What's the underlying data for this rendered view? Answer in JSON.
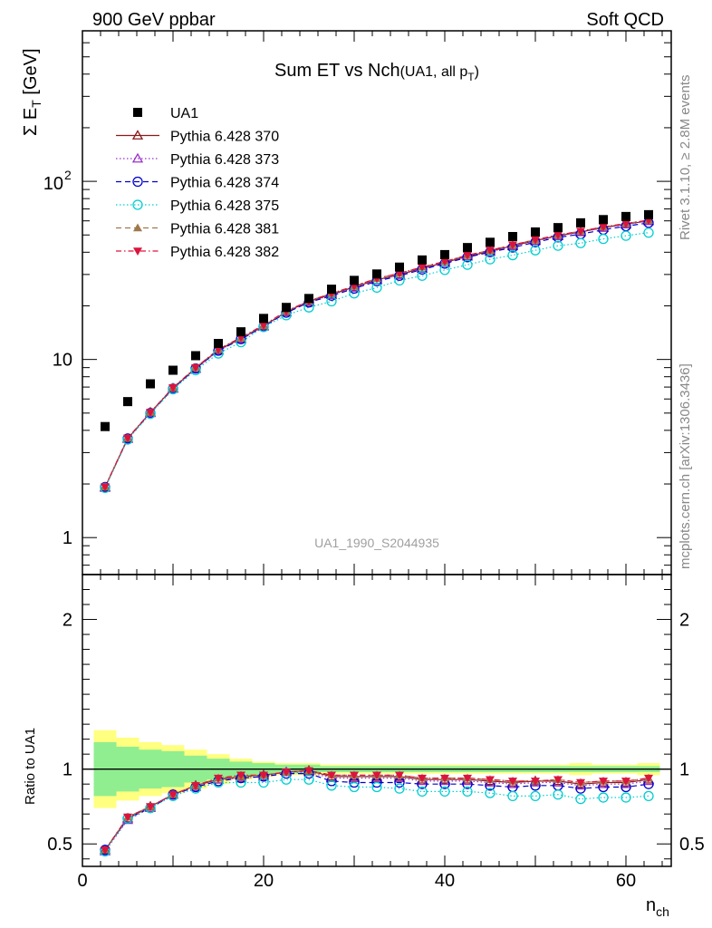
{
  "header": {
    "left": "900 GeV ppbar",
    "right": "Soft QCD",
    "title_main": "Sum ET vs Nch",
    "title_sub_pre": "(UA1, all p",
    "title_sub_sub": "T",
    "title_sub_post": ")"
  },
  "side": {
    "rivet": "Rivet 3.1.10, ≥ 2.8M events",
    "mcplots": "mcplots.cern.ch [arXiv:1306.3436]"
  },
  "watermark": "UA1_1990_S2044935",
  "chart_data": [
    {
      "type": "scatter",
      "panel": "main",
      "ylabel_main": "Σ E",
      "ylabel_sub": "T",
      "ylabel_unit": " [GeV]",
      "yscale": "log",
      "ylim": [
        0.62,
        700
      ],
      "xlim": [
        0,
        65
      ],
      "ytick_labels": {
        "1": "1",
        "10": "10",
        "100": "10",
        "100_exp": "2"
      },
      "legend": {
        "location": "top-left"
      },
      "x": [
        2.5,
        5,
        7.5,
        10,
        12.5,
        15,
        17.5,
        20,
        22.5,
        25,
        27.5,
        30,
        32.5,
        35,
        37.5,
        40,
        42.5,
        45,
        47.5,
        50,
        52.5,
        55,
        57.5,
        60,
        62.5
      ],
      "series": [
        {
          "name": "UA1",
          "color": "#000000",
          "marker": "square",
          "line": "none",
          "values": [
            4.2,
            5.8,
            7.3,
            8.7,
            10.5,
            12.3,
            14.3,
            17.0,
            19.6,
            22.0,
            24.8,
            27.8,
            30.2,
            33.0,
            36.2,
            38.8,
            42.5,
            45.5,
            49.0,
            52.0,
            55.0,
            58.5,
            61.0,
            63.5,
            65.0
          ]
        },
        {
          "name": "Pythia 6.428 370",
          "color": "#8b1a1a",
          "marker": "triangle-open",
          "line": "solid",
          "values": [
            1.92,
            3.6,
            5.05,
            6.9,
            8.9,
            11.3,
            13.1,
            15.4,
            18.5,
            21.2,
            23.2,
            25.5,
            28.0,
            30.0,
            32.5,
            35.0,
            38.0,
            40.5,
            43.5,
            46.5,
            49.5,
            52.0,
            55.0,
            57.5,
            60.0
          ]
        },
        {
          "name": "Pythia 6.428 373",
          "color": "#9932cc",
          "marker": "triangle-open",
          "line": "dotted",
          "values": [
            1.9,
            3.58,
            5.0,
            6.85,
            8.85,
            11.2,
            13.0,
            15.3,
            18.4,
            21.0,
            23.0,
            25.3,
            27.8,
            29.8,
            32.3,
            34.8,
            37.8,
            40.2,
            43.2,
            46.2,
            49.2,
            51.8,
            54.8,
            57.2,
            59.8
          ]
        },
        {
          "name": "Pythia 6.428 374",
          "color": "#0000cd",
          "marker": "circle-open",
          "line": "dashed",
          "values": [
            1.92,
            3.6,
            5.0,
            6.85,
            8.9,
            11.2,
            13.0,
            15.3,
            18.3,
            20.9,
            22.8,
            25.0,
            27.5,
            29.5,
            32.0,
            34.5,
            37.5,
            40.0,
            42.5,
            45.5,
            48.5,
            50.5,
            53.5,
            56.0,
            58.5
          ]
        },
        {
          "name": "Pythia 6.428 375",
          "color": "#00ced1",
          "marker": "circle-open",
          "line": "dotted",
          "values": [
            1.9,
            3.55,
            4.95,
            6.8,
            8.7,
            10.8,
            12.5,
            15.2,
            17.7,
            19.6,
            21.2,
            23.5,
            25.3,
            27.8,
            29.5,
            31.8,
            34.0,
            36.5,
            38.5,
            41.0,
            43.5,
            45.0,
            47.5,
            49.5,
            51.5
          ]
        },
        {
          "name": "Pythia 6.428 381",
          "color": "#a0784b",
          "marker": "triangle",
          "line": "dashed",
          "values": [
            1.93,
            3.62,
            5.05,
            6.95,
            9.0,
            11.4,
            13.2,
            15.5,
            18.6,
            21.3,
            23.5,
            25.8,
            28.5,
            30.5,
            33.0,
            35.5,
            38.5,
            41.0,
            44.0,
            47.0,
            50.0,
            52.5,
            55.5,
            58.0,
            60.5
          ]
        },
        {
          "name": "Pythia 6.428 382",
          "color": "#dc143c",
          "marker": "triangle-down",
          "line": "dashdot",
          "values": [
            1.93,
            3.62,
            5.05,
            6.95,
            9.0,
            11.4,
            13.3,
            15.6,
            18.7,
            21.3,
            23.5,
            25.8,
            28.5,
            30.5,
            33.0,
            35.5,
            38.5,
            41.0,
            44.0,
            47.0,
            50.0,
            52.5,
            55.5,
            58.0,
            60.5
          ]
        }
      ]
    },
    {
      "type": "scatter",
      "panel": "ratio",
      "ylabel": "Ratio to UA1",
      "xlabel_main": "n",
      "xlabel_sub": "ch",
      "ylim": [
        0.35,
        2.3
      ],
      "xlim": [
        0,
        65
      ],
      "xticks": [
        0,
        20,
        40,
        60
      ],
      "yticks": [
        0.5,
        1,
        2
      ],
      "ytick_labels": [
        "0.5",
        "1",
        "2"
      ],
      "band_inner": [
        0.82,
        0.85,
        0.87,
        0.88,
        0.91,
        0.93,
        0.95,
        0.96,
        0.97,
        0.97,
        0.98,
        0.98,
        0.98,
        0.98,
        0.98,
        0.98,
        0.98,
        0.98,
        0.98,
        0.98,
        0.98,
        0.98,
        0.98,
        0.98,
        0.98
      ],
      "band_inner_hi": [
        1.18,
        1.15,
        1.13,
        1.12,
        1.09,
        1.07,
        1.05,
        1.04,
        1.03,
        1.03,
        1.02,
        1.02,
        1.02,
        1.02,
        1.02,
        1.02,
        1.02,
        1.02,
        1.02,
        1.02,
        1.02,
        1.02,
        1.02,
        1.02,
        1.02
      ],
      "band_outer": [
        0.74,
        0.79,
        0.82,
        0.84,
        0.87,
        0.9,
        0.93,
        0.95,
        0.96,
        0.96,
        0.97,
        0.97,
        0.97,
        0.97,
        0.97,
        0.97,
        0.97,
        0.97,
        0.97,
        0.97,
        0.97,
        0.96,
        0.97,
        0.97,
        0.96
      ],
      "band_outer_hi": [
        1.26,
        1.21,
        1.18,
        1.16,
        1.13,
        1.1,
        1.07,
        1.05,
        1.04,
        1.04,
        1.03,
        1.03,
        1.03,
        1.03,
        1.03,
        1.03,
        1.03,
        1.03,
        1.03,
        1.03,
        1.03,
        1.04,
        1.03,
        1.03,
        1.04
      ],
      "series": [
        {
          "name": "Pythia 6.428 370",
          "values": [
            0.46,
            0.67,
            0.75,
            0.83,
            0.89,
            0.93,
            0.95,
            0.96,
            0.98,
            0.99,
            0.95,
            0.95,
            0.95,
            0.95,
            0.93,
            0.93,
            0.93,
            0.92,
            0.91,
            0.92,
            0.92,
            0.9,
            0.91,
            0.91,
            0.93
          ]
        },
        {
          "name": "Pythia 6.428 373",
          "values": [
            0.45,
            0.66,
            0.74,
            0.83,
            0.88,
            0.93,
            0.94,
            0.95,
            0.98,
            0.98,
            0.94,
            0.94,
            0.94,
            0.94,
            0.92,
            0.92,
            0.92,
            0.91,
            0.9,
            0.91,
            0.91,
            0.89,
            0.9,
            0.9,
            0.92
          ]
        },
        {
          "name": "Pythia 6.428 374",
          "values": [
            0.46,
            0.67,
            0.74,
            0.83,
            0.88,
            0.92,
            0.94,
            0.95,
            0.97,
            0.97,
            0.92,
            0.91,
            0.91,
            0.91,
            0.9,
            0.9,
            0.9,
            0.89,
            0.88,
            0.89,
            0.89,
            0.87,
            0.88,
            0.88,
            0.9
          ]
        },
        {
          "name": "Pythia 6.428 375",
          "values": [
            0.45,
            0.67,
            0.74,
            0.82,
            0.87,
            0.91,
            0.91,
            0.91,
            0.93,
            0.93,
            0.89,
            0.88,
            0.88,
            0.87,
            0.85,
            0.85,
            0.85,
            0.84,
            0.82,
            0.82,
            0.83,
            0.8,
            0.81,
            0.81,
            0.82
          ]
        },
        {
          "name": "Pythia 6.428 381",
          "values": [
            0.46,
            0.68,
            0.75,
            0.83,
            0.89,
            0.94,
            0.95,
            0.96,
            0.98,
            0.99,
            0.96,
            0.96,
            0.96,
            0.96,
            0.94,
            0.94,
            0.94,
            0.93,
            0.92,
            0.92,
            0.93,
            0.91,
            0.92,
            0.92,
            0.94
          ]
        },
        {
          "name": "Pythia 6.428 382",
          "values": [
            0.46,
            0.68,
            0.75,
            0.83,
            0.89,
            0.94,
            0.96,
            0.96,
            0.98,
            0.99,
            0.96,
            0.96,
            0.96,
            0.96,
            0.94,
            0.94,
            0.94,
            0.93,
            0.92,
            0.92,
            0.93,
            0.91,
            0.92,
            0.92,
            0.94
          ]
        }
      ]
    }
  ]
}
